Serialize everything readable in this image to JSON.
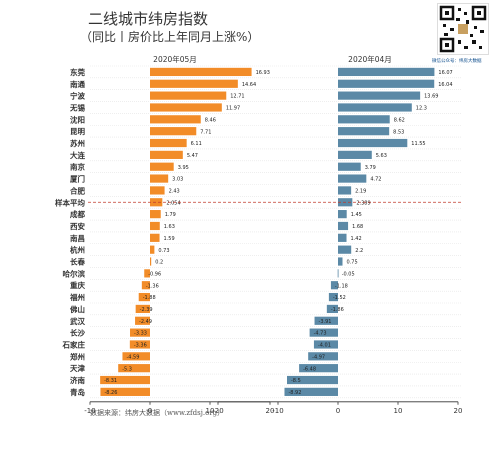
{
  "header": {
    "title": "二线城市纬房指数",
    "subtitle": "（同比丨房价比上年同月上涨%）"
  },
  "footer": {
    "source": "数据来源：纬房大数据（www.zfdsj.org）"
  },
  "qr": {
    "label": "微信公众号：纬房大数据"
  },
  "colors": {
    "left": "#f28c28",
    "right": "#5b89a6",
    "avg_line": "#c0392b"
  },
  "chart_data": [
    {
      "type": "bar",
      "orientation": "horizontal",
      "title": "2020年05月",
      "xlim": [
        -10,
        20
      ],
      "xticks": [
        -10,
        0,
        10,
        20
      ],
      "categories": [
        "东莞",
        "南通",
        "宁波",
        "无锡",
        "沈阳",
        "昆明",
        "苏州",
        "大连",
        "南京",
        "厦门",
        "合肥",
        "样本平均",
        "成都",
        "西安",
        "南昌",
        "杭州",
        "长春",
        "哈尔滨",
        "重庆",
        "福州",
        "佛山",
        "武汉",
        "长沙",
        "石家庄",
        "郑州",
        "天津",
        "济南",
        "青岛"
      ],
      "values": [
        16.93,
        14.64,
        12.71,
        11.97,
        8.46,
        7.71,
        6.11,
        5.47,
        3.95,
        3.03,
        2.43,
        2.054,
        1.79,
        1.63,
        1.59,
        0.73,
        0.2,
        -0.96,
        -1.36,
        -1.88,
        -2.39,
        -2.49,
        -3.33,
        -3.36,
        -4.59,
        -5.3,
        -8.31,
        -8.26
      ],
      "value_labels": [
        "16.93",
        "14.64",
        "12.71",
        "11.97",
        "8.46",
        "7.71",
        "6.11",
        "5.47",
        "3.95",
        "3.03",
        "2.43",
        "2.054",
        "1.79",
        "1.63",
        "1.59",
        "0.73",
        "0.2",
        "-0.96",
        "-1.36",
        "-1.88",
        "-2.39",
        "-2.49",
        "-3.33",
        "-3.36",
        "-4.59",
        "-5.3",
        "-8.31",
        "-8.26"
      ]
    },
    {
      "type": "bar",
      "orientation": "horizontal",
      "title": "2020年04月",
      "xlim": [
        -20,
        20
      ],
      "xticks": [
        -20,
        -10,
        0,
        10,
        20
      ],
      "categories": [
        "东莞",
        "南通",
        "宁波",
        "无锡",
        "沈阳",
        "昆明",
        "苏州",
        "大连",
        "南京",
        "厦门",
        "合肥",
        "样本平均",
        "成都",
        "西安",
        "南昌",
        "杭州",
        "长春",
        "哈尔滨",
        "重庆",
        "福州",
        "佛山",
        "武汉",
        "长沙",
        "石家庄",
        "郑州",
        "天津",
        "济南",
        "青岛"
      ],
      "values": [
        16.07,
        16.04,
        13.69,
        12.3,
        8.62,
        8.53,
        11.55,
        5.63,
        3.79,
        4.72,
        2.19,
        2.389,
        1.45,
        1.68,
        1.42,
        2.2,
        0.75,
        -0.05,
        -1.18,
        -1.52,
        -1.86,
        -3.91,
        -4.73,
        -4.01,
        -4.97,
        -6.48,
        -8.5,
        -8.92
      ],
      "value_labels": [
        "16.07",
        "16.04",
        "13.69",
        "12.3",
        "8.62",
        "8.53",
        "11.55",
        "5.63",
        "3.79",
        "4.72",
        "2.19",
        "2.389",
        "1.45",
        "1.68",
        "1.42",
        "2.2",
        "0.75",
        "-0.05",
        "-1.18",
        "-1.52",
        "-1.86",
        "-3.91",
        "-4.73",
        "-4.01",
        "-4.97",
        "-6.48",
        "-8.5",
        "-8.92"
      ]
    }
  ]
}
